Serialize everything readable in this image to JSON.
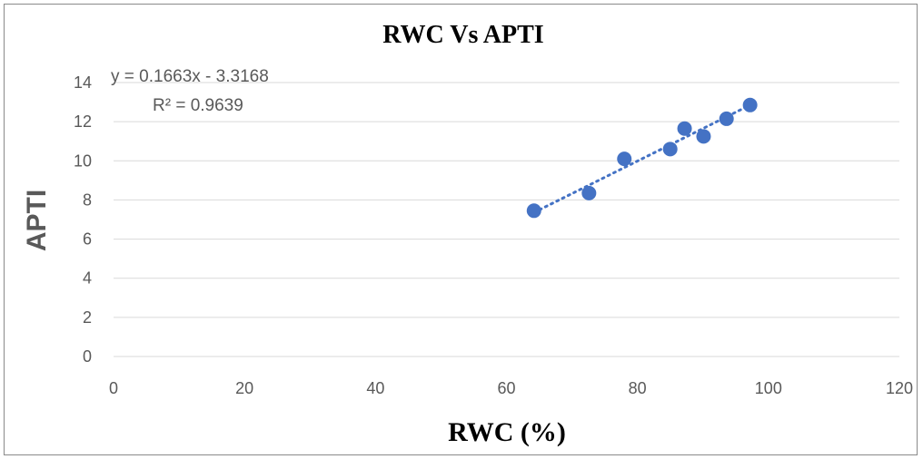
{
  "chart_data": {
    "type": "scatter",
    "title": "RWC  Vs APTI",
    "xlabel": "RWC  (%)",
    "ylabel": "APTI",
    "xlim": [
      0,
      120
    ],
    "ylim": [
      0,
      14
    ],
    "x_ticks": [
      0,
      20,
      40,
      60,
      80,
      100,
      120
    ],
    "y_ticks": [
      0,
      2,
      4,
      6,
      8,
      10,
      12,
      14
    ],
    "grid": "horizontal",
    "series": [
      {
        "color": "#4472c4",
        "points": [
          {
            "x": 64.2,
            "y": 7.45
          },
          {
            "x": 72.6,
            "y": 8.35
          },
          {
            "x": 78.0,
            "y": 10.1
          },
          {
            "x": 85.0,
            "y": 10.6
          },
          {
            "x": 87.2,
            "y": 11.65
          },
          {
            "x": 90.1,
            "y": 11.25
          },
          {
            "x": 93.6,
            "y": 12.15
          },
          {
            "x": 97.2,
            "y": 12.85
          }
        ]
      }
    ],
    "trendline": {
      "type": "linear",
      "slope": 0.1663,
      "intercept": -3.3168,
      "equation": "y = 0.1663x - 3.3168",
      "r_squared": "R² = 0.9639"
    }
  }
}
